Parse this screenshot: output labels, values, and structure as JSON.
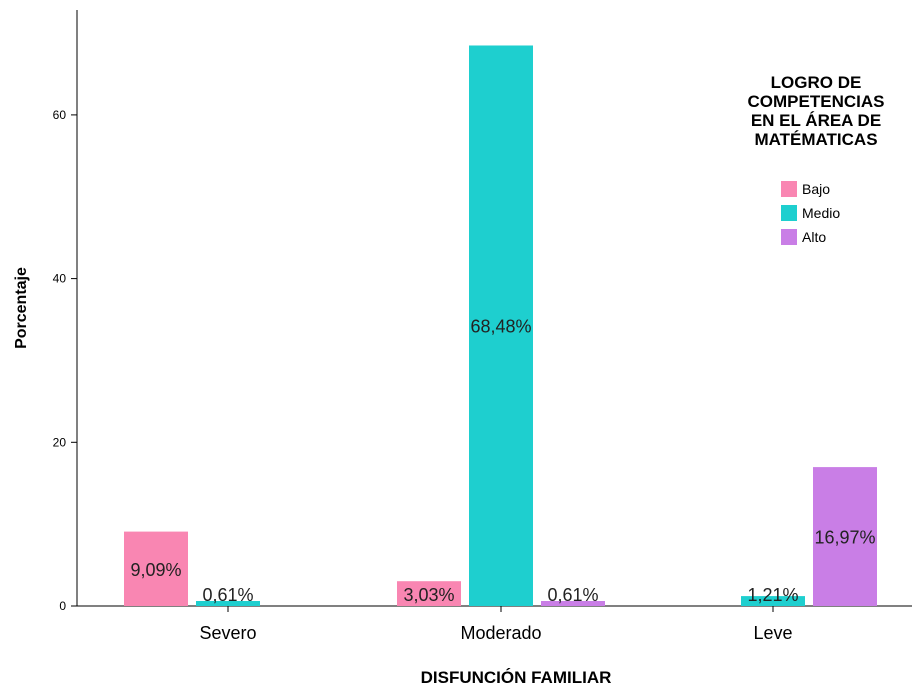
{
  "chart_data": {
    "type": "bar",
    "xlabel": "DISFUNCIÓN FAMILIAR",
    "ylabel": "Porcentaje",
    "ylim": [
      0,
      72
    ],
    "yticks": [
      0,
      20,
      40,
      60
    ],
    "categories": [
      "Severo",
      "Moderado",
      "Leve"
    ],
    "legend": {
      "title_lines": [
        "LOGRO DE",
        "COMPETENCIAS",
        "EN EL ÁREA DE",
        "MATÉMATICAS"
      ],
      "placement": "top-right"
    },
    "series": [
      {
        "name": "Bajo",
        "color": "#f986b2",
        "values": [
          9.09,
          3.03,
          null
        ],
        "labels": [
          "9,09%",
          "3,03%",
          ""
        ]
      },
      {
        "name": "Medio",
        "color": "#1ecfcf",
        "values": [
          0.61,
          68.48,
          1.21
        ],
        "labels": [
          "0,61%",
          "68,48%",
          "1,21%"
        ]
      },
      {
        "name": "Alto",
        "color": "#c97ee6",
        "values": [
          null,
          0.61,
          16.97
        ],
        "labels": [
          "",
          "0,61%",
          "16,97%"
        ]
      }
    ]
  }
}
